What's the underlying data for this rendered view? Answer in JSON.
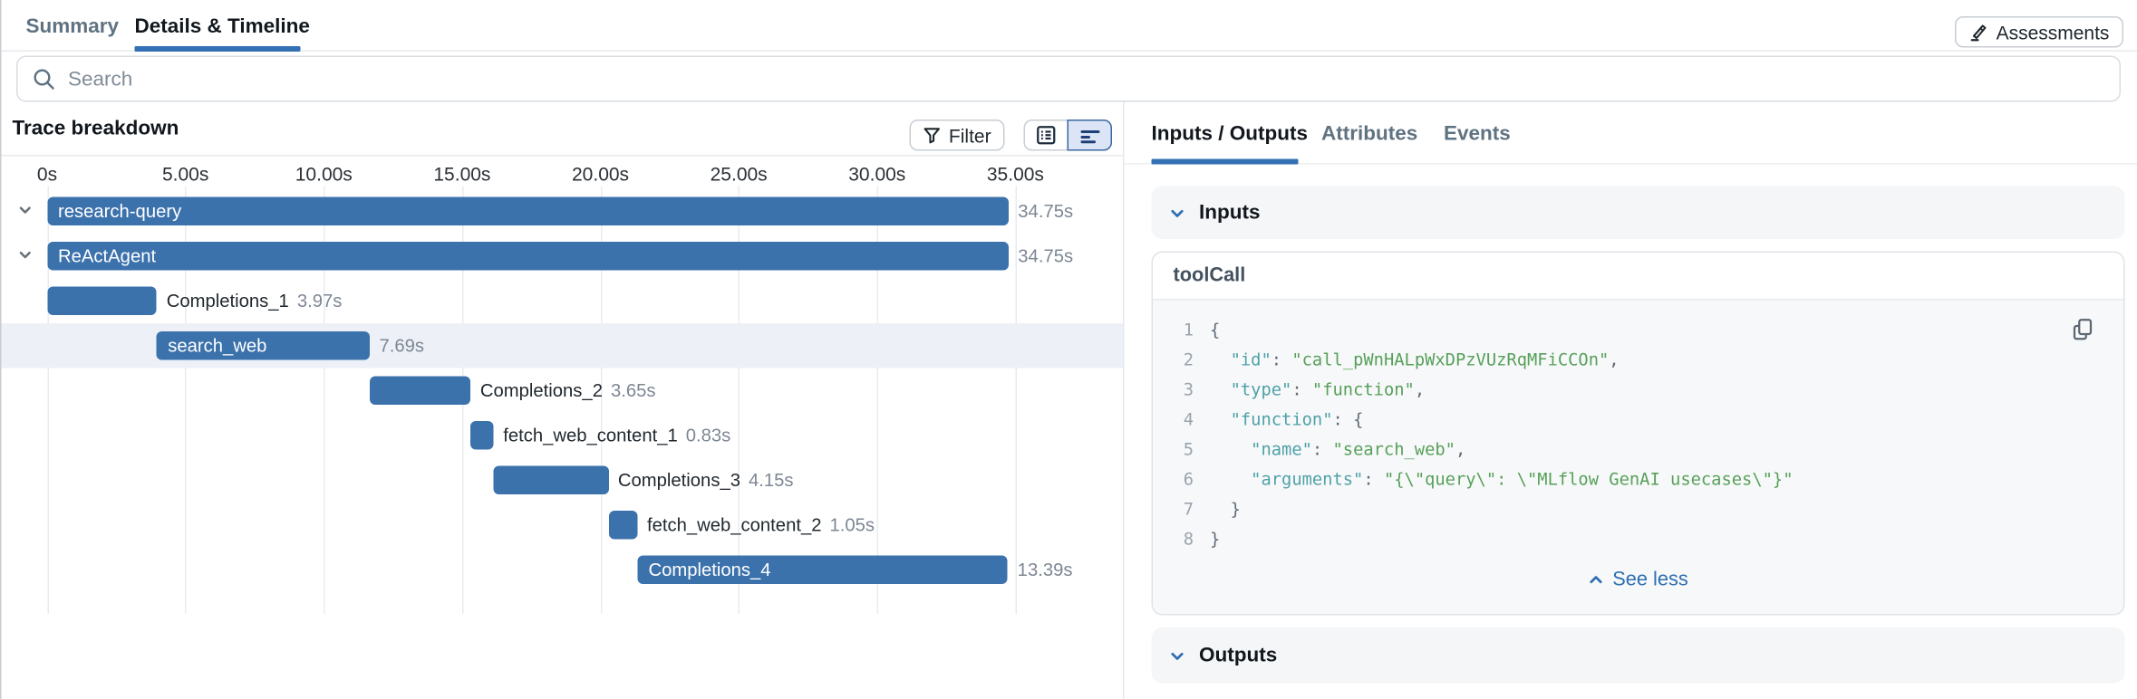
{
  "tabs": {
    "summary": "Summary",
    "details": "Details & Timeline"
  },
  "search": {
    "placeholder": "Search"
  },
  "trace_breakdown": {
    "title": "Trace breakdown",
    "filter_label": "Filter",
    "axis_ticks": [
      "0s",
      "5.00s",
      "10.00s",
      "15.00s",
      "20.00s",
      "25.00s",
      "30.00s",
      "35.00s"
    ],
    "rows": [
      {
        "name": "research-query",
        "start_s": 0,
        "duration_s": 34.75,
        "duration_label": "34.75s",
        "label_inside": true,
        "expandable": true,
        "highlighted": false
      },
      {
        "name": "ReActAgent",
        "start_s": 0,
        "duration_s": 34.75,
        "duration_label": "34.75s",
        "label_inside": true,
        "expandable": true,
        "highlighted": false
      },
      {
        "name": "Completions_1",
        "start_s": 0,
        "duration_s": 3.97,
        "duration_label": "3.97s",
        "label_inside": false,
        "expandable": false,
        "highlighted": false
      },
      {
        "name": "search_web",
        "start_s": 3.97,
        "duration_s": 7.69,
        "duration_label": "7.69s",
        "label_inside": true,
        "expandable": false,
        "highlighted": true
      },
      {
        "name": "Completions_2",
        "start_s": 11.66,
        "duration_s": 3.65,
        "duration_label": "3.65s",
        "label_inside": false,
        "expandable": false,
        "highlighted": false
      },
      {
        "name": "fetch_web_content_1",
        "start_s": 15.31,
        "duration_s": 0.83,
        "duration_label": "0.83s",
        "label_inside": false,
        "expandable": false,
        "highlighted": false
      },
      {
        "name": "Completions_3",
        "start_s": 16.14,
        "duration_s": 4.15,
        "duration_label": "4.15s",
        "label_inside": false,
        "expandable": false,
        "highlighted": false
      },
      {
        "name": "fetch_web_content_2",
        "start_s": 20.29,
        "duration_s": 1.05,
        "duration_label": "1.05s",
        "label_inside": false,
        "expandable": false,
        "highlighted": false
      },
      {
        "name": "Completions_4",
        "start_s": 21.34,
        "duration_s": 13.39,
        "duration_label": "13.39s",
        "label_inside": true,
        "expandable": false,
        "highlighted": false
      }
    ]
  },
  "detail_panel": {
    "tabs": [
      {
        "label": "Inputs / Outputs",
        "active": true
      },
      {
        "label": "Attributes",
        "active": false
      },
      {
        "label": "Events",
        "active": false
      }
    ],
    "assessments_label": "Assessments",
    "inputs_section": {
      "title": "Inputs",
      "card_title": "toolCall",
      "see_less_label": "See less",
      "code_lines": [
        {
          "n": "1",
          "indent": 0,
          "segments": [
            {
              "cls": "p",
              "t": "{"
            }
          ]
        },
        {
          "n": "2",
          "indent": 2,
          "segments": [
            {
              "cls": "k",
              "t": "\"id\""
            },
            {
              "cls": "p",
              "t": ": "
            },
            {
              "cls": "v",
              "t": "\"call_pWnHALpWxDPzVUzRqMFiCCOn\""
            },
            {
              "cls": "p",
              "t": ","
            }
          ]
        },
        {
          "n": "3",
          "indent": 2,
          "segments": [
            {
              "cls": "k",
              "t": "\"type\""
            },
            {
              "cls": "p",
              "t": ": "
            },
            {
              "cls": "v",
              "t": "\"function\""
            },
            {
              "cls": "p",
              "t": ","
            }
          ]
        },
        {
          "n": "4",
          "indent": 2,
          "segments": [
            {
              "cls": "k",
              "t": "\"function\""
            },
            {
              "cls": "p",
              "t": ": {"
            }
          ]
        },
        {
          "n": "5",
          "indent": 4,
          "segments": [
            {
              "cls": "k",
              "t": "\"name\""
            },
            {
              "cls": "p",
              "t": ": "
            },
            {
              "cls": "v",
              "t": "\"search_web\""
            },
            {
              "cls": "p",
              "t": ","
            }
          ]
        },
        {
          "n": "6",
          "indent": 4,
          "segments": [
            {
              "cls": "k",
              "t": "\"arguments\""
            },
            {
              "cls": "p",
              "t": ": "
            },
            {
              "cls": "v",
              "t": "\"{\\\"query\\\": \\\"MLflow GenAI usecases\\\"}\""
            }
          ]
        },
        {
          "n": "7",
          "indent": 2,
          "segments": [
            {
              "cls": "p",
              "t": "}"
            }
          ]
        },
        {
          "n": "8",
          "indent": 0,
          "segments": [
            {
              "cls": "p",
              "t": "}"
            }
          ]
        }
      ]
    },
    "outputs_section": {
      "title": "Outputs"
    }
  },
  "colors": {
    "accent_blue": "#3470b4",
    "bar_blue": "#3c72ac",
    "highlight_row": "#edf1f7",
    "section_bg": "#f5f6f8",
    "code_key": "#4ea1a8",
    "code_value": "#57a05a",
    "duration_gray": "#7d8794"
  }
}
